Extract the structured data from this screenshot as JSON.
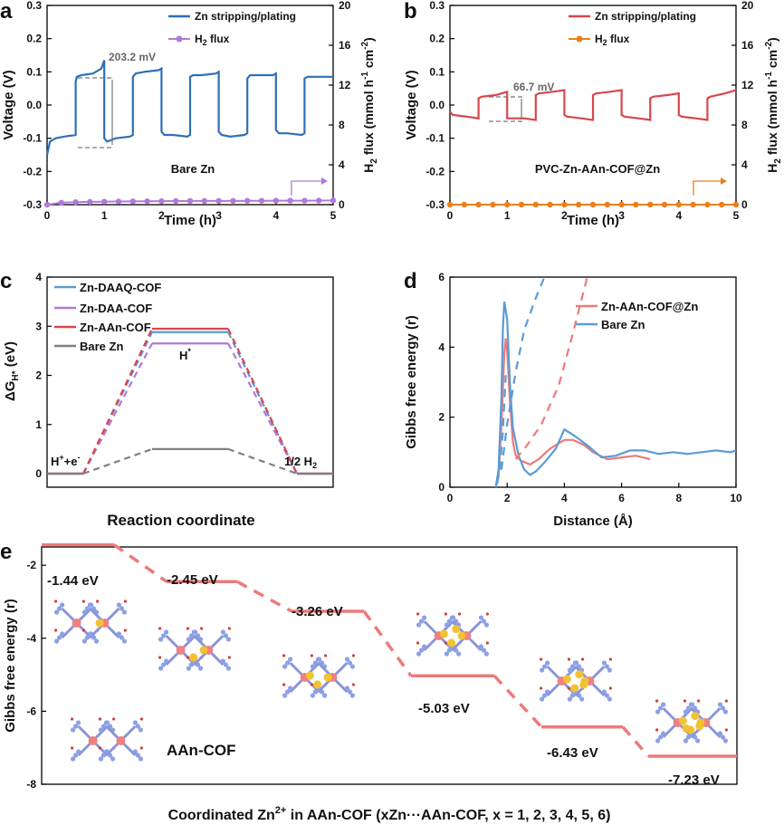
{
  "panels": {
    "a": "a",
    "b": "b",
    "c": "c",
    "d": "d",
    "e": "e"
  },
  "colors": {
    "blue": "#2f6fb8",
    "purple": "#b07ad6",
    "red": "#d8474c",
    "orange": "#e8801e",
    "gray": "#808080",
    "salmon": "#ec7b7b",
    "light_blue": "#5b9bd5"
  },
  "chart_data": [
    {
      "id": "a",
      "type": "line",
      "xlabel": "Time (h)",
      "ylabel": "Voltage (V)",
      "y2label": "H2 flux (mmol h-1 cm-2)",
      "y2label_main": "H",
      "y2label_sub": "2",
      "y2label_rest": " flux (mmol h",
      "y2label_sup1": "-1",
      "y2label_mid": " cm",
      "y2label_sup2": "-2",
      "y2label_end": ")",
      "xlim": [
        0,
        5
      ],
      "ylim": [
        -0.3,
        0.3
      ],
      "y2lim": [
        0,
        20
      ],
      "xticks": [
        "0",
        "1",
        "2",
        "3",
        "4",
        "5"
      ],
      "yticks": [
        "-0.3",
        "-0.2",
        "-0.1",
        "0.0",
        "0.1",
        "0.2",
        "0.3"
      ],
      "y2ticks": [
        "0",
        "4",
        "8",
        "12",
        "16",
        "20"
      ],
      "legend": [
        "Zn stripping/plating",
        "H2 flux"
      ],
      "legend_h2_main": "H",
      "legend_h2_sub": "2",
      "legend_h2_rest": " flux",
      "annotation": "203.2 mV",
      "label": "Bare Zn",
      "series": [
        {
          "name": "Zn stripping/plating",
          "axis": "left",
          "x": [
            0,
            0.05,
            0.15,
            0.3,
            0.5,
            0.5,
            0.52,
            0.6,
            0.8,
            0.95,
            1.0,
            1.0,
            1.05,
            1.2,
            1.45,
            1.5,
            1.5,
            1.55,
            1.7,
            1.95,
            2.0,
            2.0,
            2.05,
            2.2,
            2.45,
            2.5,
            2.5,
            2.55,
            2.7,
            2.95,
            3.0,
            3.0,
            3.05,
            3.2,
            3.45,
            3.5,
            3.5,
            3.55,
            3.7,
            3.95,
            4.0,
            4.0,
            4.05,
            4.2,
            4.45,
            4.5,
            4.5,
            4.55,
            4.7,
            5.0
          ],
          "y": [
            -0.15,
            -0.11,
            -0.1,
            -0.095,
            -0.09,
            0.07,
            0.085,
            0.09,
            0.095,
            0.11,
            0.135,
            -0.1,
            -0.11,
            -0.1,
            -0.095,
            -0.09,
            0.085,
            0.095,
            0.1,
            0.105,
            0.11,
            -0.08,
            -0.09,
            -0.09,
            -0.095,
            -0.09,
            0.085,
            0.09,
            0.09,
            0.095,
            0.1,
            -0.08,
            -0.09,
            -0.095,
            -0.09,
            -0.085,
            0.08,
            0.09,
            0.09,
            0.09,
            0.095,
            -0.075,
            -0.085,
            -0.085,
            -0.09,
            -0.085,
            0.08,
            0.085,
            0.085,
            0.085
          ]
        },
        {
          "name": "H2 flux",
          "axis": "right",
          "x": [
            0,
            0.25,
            0.5,
            0.75,
            1,
            1.25,
            1.5,
            1.75,
            2,
            2.25,
            2.5,
            2.75,
            3,
            3.25,
            3.5,
            3.75,
            4,
            4.25,
            4.5,
            4.75,
            5
          ],
          "y": [
            0,
            0.2,
            0.25,
            0.28,
            0.3,
            0.32,
            0.33,
            0.34,
            0.35,
            0.36,
            0.37,
            0.37,
            0.38,
            0.38,
            0.39,
            0.39,
            0.4,
            0.4,
            0.4,
            0.41,
            0.42
          ]
        }
      ]
    },
    {
      "id": "b",
      "type": "line",
      "xlabel": "Time (h)",
      "ylabel": "Voltage (V)",
      "xlim": [
        0,
        5
      ],
      "ylim": [
        -0.3,
        0.3
      ],
      "y2lim": [
        0,
        20
      ],
      "xticks": [
        "0",
        "1",
        "2",
        "3",
        "4",
        "5"
      ],
      "yticks": [
        "-0.3",
        "-0.2",
        "-0.1",
        "0.0",
        "0.1",
        "0.2",
        "0.3"
      ],
      "y2ticks": [
        "0",
        "4",
        "8",
        "12",
        "16",
        "20"
      ],
      "legend": [
        "Zn stripping/plating",
        "H2 flux"
      ],
      "annotation": "66.7 mV",
      "label": "PVC-Zn-AAn-COF@Zn",
      "series": [
        {
          "name": "Zn stripping/plating",
          "axis": "left",
          "x": [
            0,
            0.05,
            0.3,
            0.5,
            0.5,
            0.55,
            0.8,
            1.0,
            1.0,
            1.05,
            1.3,
            1.5,
            1.5,
            1.55,
            1.8,
            2.0,
            2.0,
            2.05,
            2.3,
            2.5,
            2.5,
            2.55,
            2.8,
            3.0,
            3.0,
            3.05,
            3.3,
            3.5,
            3.5,
            3.55,
            3.8,
            4.0,
            4.0,
            4.05,
            4.3,
            4.5,
            4.5,
            4.55,
            4.8,
            5.0
          ],
          "y": [
            -0.02,
            -0.03,
            -0.035,
            -0.04,
            0.02,
            0.025,
            0.03,
            0.04,
            -0.04,
            -0.04,
            -0.04,
            -0.045,
            0.03,
            0.035,
            0.04,
            0.045,
            -0.03,
            -0.035,
            -0.04,
            -0.045,
            0.03,
            0.035,
            0.04,
            0.045,
            -0.03,
            -0.035,
            -0.04,
            -0.045,
            0.02,
            0.025,
            0.03,
            0.035,
            -0.03,
            -0.035,
            -0.04,
            -0.045,
            0.02,
            0.025,
            0.035,
            0.045
          ]
        },
        {
          "name": "H2 flux",
          "axis": "right",
          "x": [
            0,
            0.25,
            0.5,
            0.75,
            1,
            1.25,
            1.5,
            1.75,
            2,
            2.25,
            2.5,
            2.75,
            3,
            3.25,
            3.5,
            3.75,
            4,
            4.25,
            4.5,
            4.75,
            5
          ],
          "y": [
            0,
            0,
            0,
            0,
            0,
            0,
            0,
            0,
            0,
            0,
            0,
            0,
            0,
            0,
            0,
            0,
            0,
            0,
            0,
            0,
            0
          ]
        }
      ]
    },
    {
      "id": "c",
      "type": "line",
      "xlabel": "Reaction coordinate",
      "ylabel_main": "ΔG",
      "ylabel_sub": "H*",
      "ylabel_rest": " (eV)",
      "ylim": [
        0,
        4
      ],
      "yticks": [
        "0",
        "1",
        "2",
        "3",
        "4"
      ],
      "legend": [
        "Zn-DAAQ-COF",
        "Zn-DAA-COF",
        "Zn-AAn-COF",
        "Bare Zn"
      ],
      "annotations": {
        "start_main": "H",
        "start_sup": "+",
        "start_rest": "+e",
        "start_sup2": "-",
        "middle_main": "H",
        "middle_sup": "*",
        "end": "1/2 H",
        "end_sub": "2"
      },
      "series": [
        {
          "name": "Zn-DAAQ-COF",
          "levels": [
            0,
            2.88,
            0
          ]
        },
        {
          "name": "Zn-DAA-COF",
          "levels": [
            0,
            2.65,
            0
          ]
        },
        {
          "name": "Zn-AAn-COF",
          "levels": [
            0,
            2.95,
            0
          ]
        },
        {
          "name": "Bare Zn",
          "levels": [
            0,
            0.5,
            0
          ]
        }
      ]
    },
    {
      "id": "d",
      "type": "line",
      "xlabel": "Distance (Å)",
      "ylabel": "Gibbs free energy (r)",
      "xlim": [
        0,
        10
      ],
      "ylim": [
        0,
        6
      ],
      "xticks": [
        "0",
        "2",
        "4",
        "6",
        "8",
        "10"
      ],
      "yticks": [
        "0",
        "2",
        "4",
        "6"
      ],
      "legend": [
        "Zn-AAn-COF@Zn",
        "Bare Zn"
      ],
      "series": [
        {
          "name": "Zn-AAn-COF@Zn",
          "x": [
            1.6,
            1.7,
            1.8,
            1.9,
            1.95,
            2.0,
            2.1,
            2.2,
            2.3,
            2.5,
            2.8,
            3.1,
            3.5,
            4.0,
            4.3,
            4.7,
            5.0,
            5.5,
            6.0,
            6.5,
            7.0
          ],
          "y": [
            0,
            0.3,
            1.8,
            3.8,
            4.25,
            3.9,
            2.4,
            1.3,
            0.9,
            0.75,
            0.65,
            0.8,
            1.1,
            1.35,
            1.35,
            1.2,
            1.0,
            0.8,
            0.85,
            0.9,
            0.8
          ]
        },
        {
          "name": "Bare Zn",
          "x": [
            1.6,
            1.7,
            1.8,
            1.85,
            1.9,
            2.0,
            2.1,
            2.2,
            2.4,
            2.6,
            2.8,
            3.0,
            3.3,
            3.7,
            4.0,
            4.3,
            4.8,
            5.3,
            5.8,
            6.3,
            6.8,
            7.3,
            7.8,
            8.3,
            8.8,
            9.3,
            9.8,
            10.0
          ],
          "y": [
            0,
            0.5,
            2.6,
            4.5,
            5.3,
            4.8,
            2.9,
            1.7,
            0.9,
            0.5,
            0.35,
            0.45,
            0.7,
            1.1,
            1.65,
            1.5,
            1.2,
            0.85,
            0.9,
            1.05,
            1.05,
            0.95,
            1.0,
            0.95,
            1.0,
            1.05,
            1.0,
            1.05
          ]
        },
        {
          "name": "red-dashed",
          "x": [
            2.3,
            2.7,
            3.2,
            3.8,
            4.3,
            4.8
          ],
          "y": [
            0.8,
            1.2,
            1.8,
            2.9,
            4.4,
            6.0
          ]
        },
        {
          "name": "blue-dashed-1",
          "x": [
            1.65,
            1.75,
            1.85,
            1.95
          ],
          "y": [
            0.1,
            0.6,
            1.6,
            3.2
          ]
        },
        {
          "name": "blue-dashed-2",
          "x": [
            1.8,
            2.0,
            2.3,
            2.6,
            3.0,
            3.3
          ],
          "y": [
            0.5,
            1.8,
            3.3,
            4.5,
            5.4,
            6.0
          ]
        }
      ]
    },
    {
      "id": "e",
      "type": "line",
      "xlabel_main": "Coordinated Zn",
      "xlabel_sup": "2+",
      "xlabel_rest": " in AAn-COF (xZn···AAn-COF, x = 1, 2, 3, 4, 5, 6)",
      "ylabel": "Gibbs free energy (r)",
      "ylim": [
        -8,
        -1.5
      ],
      "yticks": [
        "-2",
        "-4",
        "-6",
        "-8"
      ],
      "levels": [
        -1.44,
        -2.45,
        -3.26,
        -5.03,
        -6.43,
        -7.23
      ],
      "level_labels": [
        "-1.44 eV",
        "-2.45 eV",
        "-3.26 eV",
        "-5.03 eV",
        "-6.43 eV",
        "-7.23 eV"
      ],
      "inset_label": "AAn-COF"
    }
  ]
}
